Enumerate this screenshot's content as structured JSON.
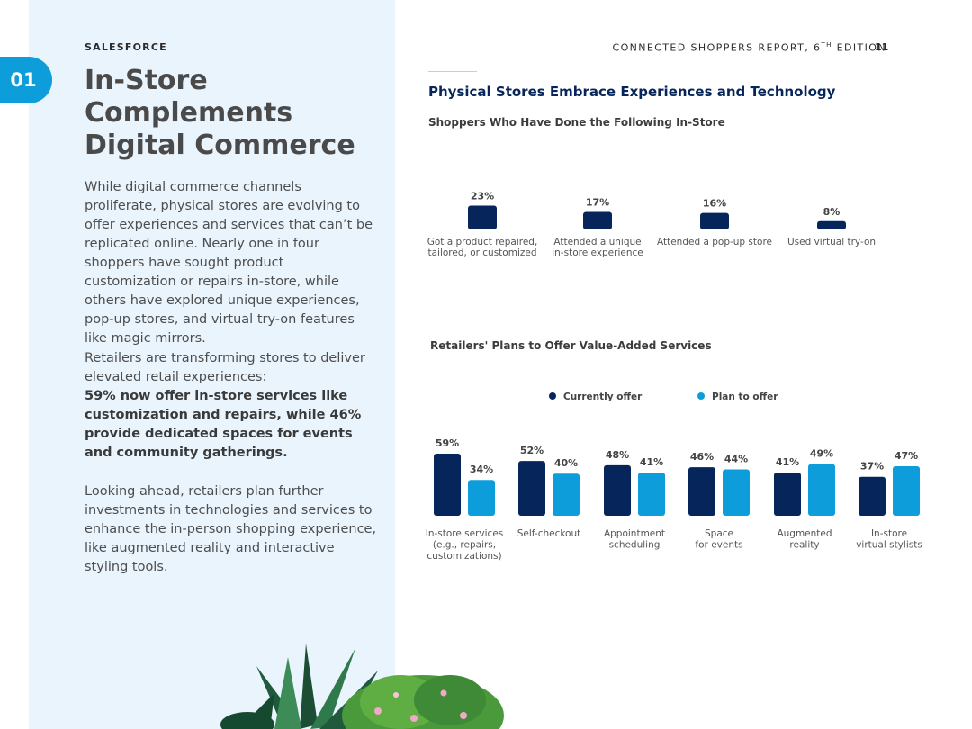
{
  "header": {
    "brand": "SALESFORCE",
    "report_title": "CONNECTED SHOPPERS REPORT, 6",
    "report_sup": "TH",
    "report_edition": " EDITION",
    "page_number": "11"
  },
  "chapter": {
    "number": "01"
  },
  "left": {
    "title_lines": [
      "In-Store",
      "Complements",
      "Digital Commerce"
    ],
    "para1": "While digital commerce channels proliferate, physical stores are evolving to offer experiences and services that can’t be replicated online. Nearly one in four shoppers have sought product customization or repairs in-store, while others have explored unique experiences, pop-up stores, and virtual try-on features like magic mirrors.",
    "para2_lead": "Retailers are transforming stores to deliver elevated retail experiences:",
    "para2_bold": "59% now offer in-store services like customization and repairs, while 46% provide dedicated spaces for events and community gatherings.",
    "para3": "Looking ahead, retailers plan further investments in technologies and services to enhance the in-person shopping experience, like augmented reality and interactive styling tools."
  },
  "right": {
    "section_title": "Physical Stores Embrace Experiences and Technology"
  },
  "colors": {
    "navy": "#06255a",
    "blue": "#0d9dda",
    "panel": "#e9f4fd"
  },
  "chart_data": [
    {
      "type": "bar",
      "title": "Shoppers Who Have Done the Following In-Store",
      "categories": [
        [
          "Got a product repaired,",
          "tailored, or customized"
        ],
        [
          "Attended a unique",
          "in-store experience"
        ],
        [
          "Attended a pop-up store"
        ],
        [
          "Used virtual try-on"
        ]
      ],
      "values": [
        23,
        17,
        16,
        8
      ],
      "value_labels": [
        "23%",
        "17%",
        "16%",
        "8%"
      ],
      "color": "#06255a"
    },
    {
      "type": "bar",
      "title": "Retailers' Plans to Offer Value-Added Services",
      "legend": "top",
      "categories": [
        [
          "In-store services",
          "(e.g., repairs,",
          "customizations)"
        ],
        [
          "Self-checkout"
        ],
        [
          "Appointment",
          "scheduling"
        ],
        [
          "Space",
          "for events"
        ],
        [
          "Augmented",
          "reality"
        ],
        [
          "In-store",
          "virtual stylists"
        ]
      ],
      "series": [
        {
          "name": "Currently offer",
          "color": "#06255a",
          "values": [
            59,
            52,
            48,
            46,
            41,
            37
          ]
        },
        {
          "name": "Plan to offer",
          "color": "#0d9dda",
          "values": [
            34,
            40,
            41,
            44,
            49,
            47
          ]
        }
      ]
    }
  ]
}
